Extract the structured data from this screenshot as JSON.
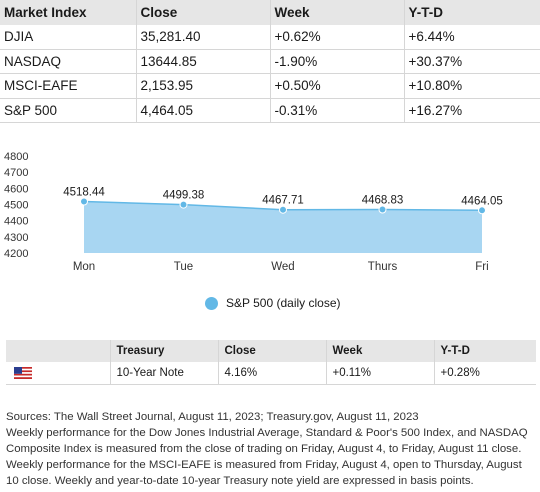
{
  "market_table": {
    "headers": [
      "Market Index",
      "Close",
      "Week",
      "Y-T-D"
    ],
    "rows": [
      [
        "DJIA",
        "35,281.40",
        "+0.62%",
        "+6.44%"
      ],
      [
        "NASDAQ",
        "13644.85",
        "-1.90%",
        "+30.37%"
      ],
      [
        "MSCI-EAFE",
        "2,153.95",
        "+0.50%",
        "+10.80%"
      ],
      [
        "S&P 500",
        "4,464.05",
        "-0.31%",
        "+16.27%"
      ]
    ]
  },
  "chart_data": {
    "type": "area",
    "categories": [
      "Mon",
      "Tue",
      "Wed",
      "Thurs",
      "Fri"
    ],
    "series": [
      {
        "name": "S&P 500 (daily close)",
        "values": [
          4518.44,
          4499.38,
          4467.71,
          4468.83,
          4464.05
        ],
        "labels": [
          "4518.44",
          "4499.38",
          "4467.71",
          "4468.83",
          "4464.05"
        ]
      }
    ],
    "yticks": [
      4200,
      4300,
      4400,
      4500,
      4600,
      4700,
      4800
    ],
    "ylim": [
      4200,
      4800
    ],
    "legend": "bottom-center",
    "grid": false,
    "colors": {
      "fill": "#a8d6f2",
      "line": "#62b8e6",
      "marker": "#62b8e6"
    }
  },
  "treasury_table": {
    "headers": [
      "",
      "Treasury",
      "Close",
      "Week",
      "Y-T-D"
    ],
    "rows": [
      [
        "us-flag-icon",
        "10-Year Note",
        "4.16%",
        "+0.11%",
        "+0.28%"
      ]
    ]
  },
  "notes": [
    "Sources: The Wall Street Journal, August 11, 2023; Treasury.gov, August 11, 2023",
    "Weekly performance for the Dow Jones Industrial Average, Standard & Poor's 500 Index, and NASDAQ Composite Index is measured from the close of trading on Friday, August 4, to Friday, August 11 close. Weekly performance for the MSCI-EAFE is measured from Friday, August 4, open to Thursday, August 10 close. Weekly and year-to-date 10-year Treasury note yield are expressed in basis points."
  ]
}
